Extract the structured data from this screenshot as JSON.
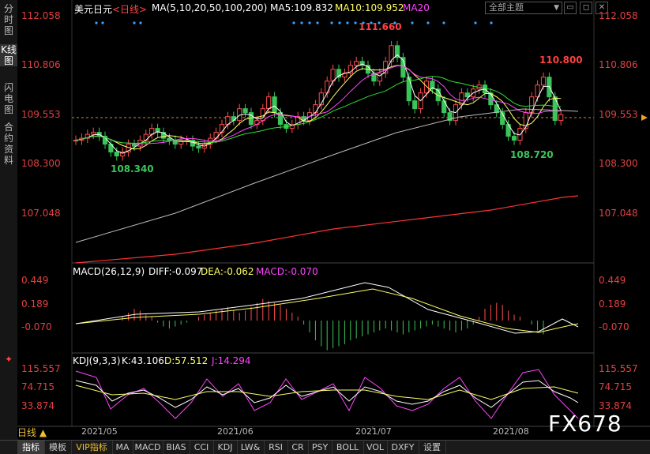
{
  "sidebar": {
    "tabs": [
      {
        "label": "分时图"
      },
      {
        "label": "K线图",
        "active": true
      },
      {
        "label": "闪电图"
      },
      {
        "label": "合约资料"
      }
    ]
  },
  "header": {
    "title": "美元日元",
    "period": "<日线>",
    "ma_label": "MA(5,10,20,50,100,200)",
    "ma5": "MA5:109.832",
    "ma10": "MA10:109.952",
    "ma20": "MA20",
    "theme": "全部主题"
  },
  "price_axis": [
    "112.058",
    "110.806",
    "109.553",
    "108.300",
    "107.048"
  ],
  "current_price": "109.553",
  "annotations": {
    "high": "111.660",
    "high2": "110.800",
    "low1": "108.340",
    "low2": "108.720"
  },
  "macd": {
    "label": "MACD(26,12,9)",
    "diff": "DIFF:-0.097",
    "dea": "DEA:-0.062",
    "macd": "MACD:-0.070",
    "axis": [
      "0.449",
      "0.189",
      "-0.070"
    ]
  },
  "kdj": {
    "label": "KDJ(9,3,3)",
    "k": "K:43.106",
    "d": "D:57.512",
    "j": "J:14.294",
    "axis": [
      "115.557",
      "74.715",
      "33.874"
    ]
  },
  "dates": [
    "2021/05",
    "2021/06",
    "2021/07",
    "2021/08"
  ],
  "period_button": "日线",
  "toolbar": [
    "指标",
    "模板",
    "VIP指标",
    "MA",
    "MACD",
    "BIAS",
    "CCI",
    "KDJ",
    "LW&",
    "RSI",
    "CR",
    "PSY",
    "BOLL",
    "VOL",
    "DXFY",
    "设置"
  ],
  "logo": "FX678",
  "colors": {
    "up": "#ff4d4d",
    "down": "#3ac55a",
    "ma5": "#ffffff",
    "ma10": "#ffff66",
    "ma20": "#ff44ff",
    "ma50": "#33dd33",
    "ma100": "#bbbbbb",
    "ma200": "#ff3333"
  }
}
